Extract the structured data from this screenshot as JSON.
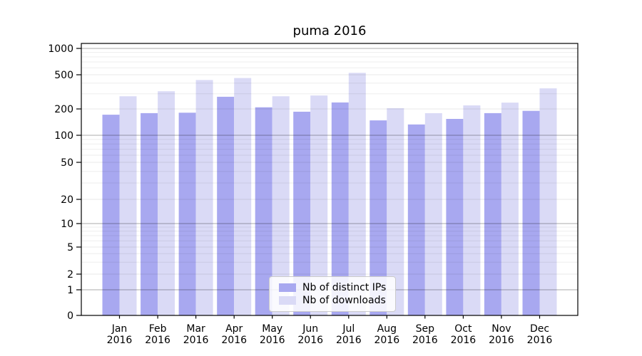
{
  "title": "puma 2016",
  "legend": {
    "items": [
      {
        "label": "Nb of distinct IPs",
        "color": "#a8a8f0"
      },
      {
        "label": "Nb of downloads",
        "color": "#dadaf6"
      }
    ],
    "position": "lower center"
  },
  "chart_data": {
    "type": "bar",
    "title": "puma 2016",
    "categories": [
      "Jan 2016",
      "Feb 2016",
      "Mar 2016",
      "Apr 2016",
      "May 2016",
      "Jun 2016",
      "Jul 2016",
      "Aug 2016",
      "Sep 2016",
      "Oct 2016",
      "Nov 2016",
      "Dec 2016"
    ],
    "series": [
      {
        "name": "Nb of distinct IPs",
        "color": "#a8a8f0",
        "values": [
          172,
          179,
          181,
          277,
          209,
          186,
          238,
          148,
          133,
          154,
          179,
          190
        ]
      },
      {
        "name": "Nb of downloads",
        "color": "#dadaf6",
        "values": [
          281,
          321,
          434,
          458,
          281,
          287,
          526,
          204,
          179,
          220,
          237,
          347
        ]
      }
    ],
    "xlabel": "",
    "ylabel": "",
    "yscale": "symlog",
    "yticks": [
      0,
      1,
      2,
      5,
      10,
      20,
      50,
      100,
      200,
      500,
      1000
    ],
    "y_minor_ticks": [
      3,
      4,
      6,
      7,
      8,
      9,
      30,
      40,
      60,
      70,
      80,
      90,
      300,
      400,
      600,
      700,
      800,
      900
    ],
    "ylim": [
      0,
      1140
    ],
    "grid": true,
    "grid_emphasis_ticks": [
      1,
      10,
      100,
      1000
    ],
    "legend_position": "lower center"
  }
}
